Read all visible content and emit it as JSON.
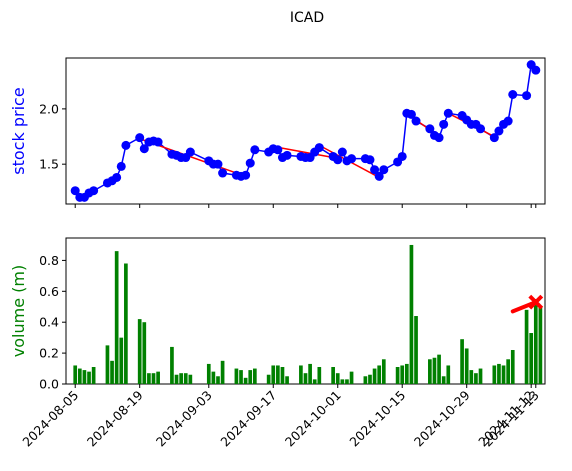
{
  "chart_data": [
    {
      "type": "line",
      "title": "ICAD",
      "ylabel": "stock price",
      "ylabel_color": "#0000ff",
      "yticks": [
        1.5,
        2.0
      ],
      "ylim": [
        1.14,
        2.46
      ],
      "xlim": [
        "2024-08-03",
        "2024-11-15"
      ],
      "grid": false,
      "line_color": "#0000ff",
      "trend_color": "#ff0000",
      "series": [
        {
          "points": [
            [
              "2024-08-05",
              1.26
            ],
            [
              "2024-08-06",
              1.2
            ],
            [
              "2024-08-07",
              1.2
            ],
            [
              "2024-08-08",
              1.24
            ],
            [
              "2024-08-09",
              1.26
            ],
            [
              "2024-08-12",
              1.33
            ],
            [
              "2024-08-13",
              1.35
            ],
            [
              "2024-08-14",
              1.38
            ],
            [
              "2024-08-15",
              1.48
            ],
            [
              "2024-08-16",
              1.67
            ],
            [
              "2024-08-19",
              1.74
            ],
            [
              "2024-08-20",
              1.64
            ],
            [
              "2024-08-21",
              1.7
            ],
            [
              "2024-08-22",
              1.71
            ],
            [
              "2024-08-23",
              1.7
            ],
            [
              "2024-08-26",
              1.59
            ],
            [
              "2024-08-27",
              1.58
            ],
            [
              "2024-08-28",
              1.56
            ],
            [
              "2024-08-29",
              1.56
            ],
            [
              "2024-08-30",
              1.61
            ],
            [
              "2024-09-03",
              1.53
            ],
            [
              "2024-09-04",
              1.5
            ],
            [
              "2024-09-05",
              1.5
            ],
            [
              "2024-09-06",
              1.42
            ],
            [
              "2024-09-09",
              1.4
            ],
            [
              "2024-09-10",
              1.39
            ],
            [
              "2024-09-11",
              1.4
            ],
            [
              "2024-09-12",
              1.51
            ],
            [
              "2024-09-13",
              1.63
            ],
            [
              "2024-09-16",
              1.61
            ],
            [
              "2024-09-17",
              1.64
            ],
            [
              "2024-09-18",
              1.63
            ],
            [
              "2024-09-19",
              1.56
            ],
            [
              "2024-09-20",
              1.58
            ],
            [
              "2024-09-23",
              1.57
            ],
            [
              "2024-09-24",
              1.56
            ],
            [
              "2024-09-25",
              1.56
            ],
            [
              "2024-09-26",
              1.61
            ],
            [
              "2024-09-27",
              1.65
            ],
            [
              "2024-09-30",
              1.57
            ],
            [
              "2024-10-01",
              1.54
            ],
            [
              "2024-10-02",
              1.61
            ],
            [
              "2024-10-03",
              1.53
            ],
            [
              "2024-10-04",
              1.55
            ],
            [
              "2024-10-07",
              1.55
            ],
            [
              "2024-10-08",
              1.54
            ],
            [
              "2024-10-09",
              1.45
            ],
            [
              "2024-10-10",
              1.39
            ],
            [
              "2024-10-11",
              1.45
            ],
            [
              "2024-10-14",
              1.52
            ],
            [
              "2024-10-15",
              1.57
            ],
            [
              "2024-10-16",
              1.96
            ],
            [
              "2024-10-17",
              1.95
            ],
            [
              "2024-10-18",
              1.89
            ],
            [
              "2024-10-21",
              1.82
            ],
            [
              "2024-10-22",
              1.76
            ],
            [
              "2024-10-23",
              1.74
            ],
            [
              "2024-10-24",
              1.86
            ],
            [
              "2024-10-25",
              1.96
            ],
            [
              "2024-10-28",
              1.94
            ],
            [
              "2024-10-29",
              1.9
            ],
            [
              "2024-10-30",
              1.86
            ],
            [
              "2024-10-31",
              1.86
            ],
            [
              "2024-11-01",
              1.82
            ],
            [
              "2024-11-04",
              1.74
            ],
            [
              "2024-11-05",
              1.8
            ],
            [
              "2024-11-06",
              1.86
            ],
            [
              "2024-11-07",
              1.89
            ],
            [
              "2024-11-08",
              2.13
            ],
            [
              "2024-11-11",
              2.12
            ],
            [
              "2024-11-12",
              2.4
            ],
            [
              "2024-11-13",
              2.35
            ]
          ]
        }
      ],
      "trend_lines": [
        {
          "x": [
            "2024-08-19",
            "2024-09-11"
          ],
          "y": [
            1.73,
            1.39
          ]
        },
        {
          "x": [
            "2024-09-17",
            "2024-09-30"
          ],
          "y": [
            1.66,
            1.56
          ]
        },
        {
          "x": [
            "2024-09-27",
            "2024-10-10"
          ],
          "y": [
            1.67,
            1.38
          ]
        },
        {
          "x": [
            "2024-10-16",
            "2024-10-23"
          ],
          "y": [
            1.96,
            1.75
          ]
        },
        {
          "x": [
            "2024-10-25",
            "2024-11-04"
          ],
          "y": [
            1.96,
            1.75
          ]
        }
      ]
    },
    {
      "type": "bar",
      "ylabel": "volume (m)",
      "ylabel_color": "#008000",
      "yticks": [
        0.0,
        0.2,
        0.4,
        0.6,
        0.8
      ],
      "ylim": [
        0.0,
        0.945
      ],
      "xlim": [
        "2024-08-03",
        "2024-11-15"
      ],
      "grid": false,
      "bar_color": "#008000",
      "marker_color": "#ff0000",
      "xtick_labels": [
        "2024-08-05",
        "2024-08-19",
        "2024-09-03",
        "2024-09-17",
        "2024-10-01",
        "2024-10-15",
        "2024-10-29",
        "2024-11-12",
        "2024-11-13"
      ],
      "bars": [
        [
          "2024-08-05",
          0.12
        ],
        [
          "2024-08-06",
          0.1
        ],
        [
          "2024-08-07",
          0.09
        ],
        [
          "2024-08-08",
          0.08
        ],
        [
          "2024-08-09",
          0.11
        ],
        [
          "2024-08-12",
          0.25
        ],
        [
          "2024-08-13",
          0.15
        ],
        [
          "2024-08-14",
          0.86
        ],
        [
          "2024-08-15",
          0.3
        ],
        [
          "2024-08-16",
          0.78
        ],
        [
          "2024-08-19",
          0.42
        ],
        [
          "2024-08-20",
          0.4
        ],
        [
          "2024-08-21",
          0.07
        ],
        [
          "2024-08-22",
          0.07
        ],
        [
          "2024-08-23",
          0.08
        ],
        [
          "2024-08-26",
          0.24
        ],
        [
          "2024-08-27",
          0.06
        ],
        [
          "2024-08-28",
          0.07
        ],
        [
          "2024-08-29",
          0.07
        ],
        [
          "2024-08-30",
          0.06
        ],
        [
          "2024-09-03",
          0.13
        ],
        [
          "2024-09-04",
          0.08
        ],
        [
          "2024-09-05",
          0.05
        ],
        [
          "2024-09-06",
          0.15
        ],
        [
          "2024-09-09",
          0.1
        ],
        [
          "2024-09-10",
          0.09
        ],
        [
          "2024-09-11",
          0.04
        ],
        [
          "2024-09-12",
          0.09
        ],
        [
          "2024-09-13",
          0.1
        ],
        [
          "2024-09-16",
          0.06
        ],
        [
          "2024-09-17",
          0.12
        ],
        [
          "2024-09-18",
          0.12
        ],
        [
          "2024-09-19",
          0.11
        ],
        [
          "2024-09-20",
          0.05
        ],
        [
          "2024-09-23",
          0.12
        ],
        [
          "2024-09-24",
          0.07
        ],
        [
          "2024-09-25",
          0.13
        ],
        [
          "2024-09-26",
          0.03
        ],
        [
          "2024-09-27",
          0.11
        ],
        [
          "2024-09-30",
          0.11
        ],
        [
          "2024-10-01",
          0.07
        ],
        [
          "2024-10-02",
          0.03
        ],
        [
          "2024-10-03",
          0.03
        ],
        [
          "2024-10-04",
          0.08
        ],
        [
          "2024-10-07",
          0.05
        ],
        [
          "2024-10-08",
          0.06
        ],
        [
          "2024-10-09",
          0.1
        ],
        [
          "2024-10-10",
          0.12
        ],
        [
          "2024-10-11",
          0.16
        ],
        [
          "2024-10-14",
          0.11
        ],
        [
          "2024-10-15",
          0.12
        ],
        [
          "2024-10-16",
          0.13
        ],
        [
          "2024-10-17",
          0.9
        ],
        [
          "2024-10-18",
          0.44
        ],
        [
          "2024-10-21",
          0.16
        ],
        [
          "2024-10-22",
          0.17
        ],
        [
          "2024-10-23",
          0.19
        ],
        [
          "2024-10-24",
          0.05
        ],
        [
          "2024-10-25",
          0.12
        ],
        [
          "2024-10-28",
          0.29
        ],
        [
          "2024-10-29",
          0.23
        ],
        [
          "2024-10-30",
          0.09
        ],
        [
          "2024-10-31",
          0.07
        ],
        [
          "2024-11-01",
          0.1
        ],
        [
          "2024-11-04",
          0.12
        ],
        [
          "2024-11-05",
          0.13
        ],
        [
          "2024-11-06",
          0.12
        ],
        [
          "2024-11-07",
          0.16
        ],
        [
          "2024-11-08",
          0.22
        ],
        [
          "2024-11-11",
          0.48
        ],
        [
          "2024-11-12",
          0.33
        ],
        [
          "2024-11-13",
          0.55
        ],
        [
          "2024-11-14",
          0.5
        ]
      ],
      "volume_trend": {
        "x": [
          "2024-11-08",
          "2024-11-13"
        ],
        "y": [
          0.47,
          0.53
        ]
      },
      "marker": {
        "x": "2024-11-13",
        "y": 0.53,
        "symbol": "x"
      }
    }
  ]
}
